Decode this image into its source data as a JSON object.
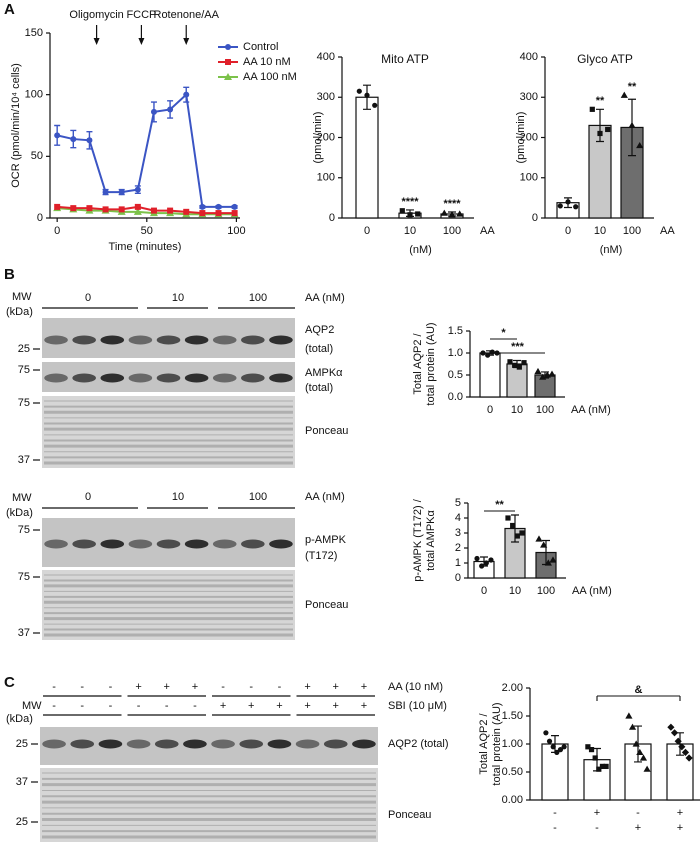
{
  "panel_labels": [
    "A",
    "B",
    "C"
  ],
  "chart_data": [
    {
      "type": "line",
      "xlabel": "Time (minutes)",
      "ylabel": "OCR (pmol/min/10⁴ cells)",
      "x": [
        0,
        9,
        18,
        27,
        36,
        45,
        54,
        63,
        72,
        81,
        90,
        99
      ],
      "series": [
        {
          "name": "Control",
          "color": "#3b55c4",
          "marker": "circle",
          "values": [
            67,
            64,
            63,
            21,
            21,
            23,
            86,
            88,
            100,
            9,
            9,
            9
          ],
          "errors": [
            8,
            7,
            7,
            2,
            2,
            3,
            8,
            7,
            6,
            1,
            1,
            1
          ]
        },
        {
          "name": "AA 10 nM",
          "color": "#e0202a",
          "marker": "square",
          "values": [
            9,
            8,
            8,
            7,
            7,
            9,
            6,
            6,
            5,
            4,
            4,
            4
          ]
        },
        {
          "name": "AA 100 nM",
          "color": "#7cc24a",
          "marker": "triangle",
          "values": [
            8,
            7,
            6,
            6,
            5,
            5,
            4,
            4,
            3,
            3,
            3,
            3
          ]
        }
      ],
      "annotations": [
        {
          "text": "Oligomycin",
          "x": 22
        },
        {
          "text": "FCCP",
          "x": 47
        },
        {
          "text": "Rotenone/AA",
          "x": 72
        }
      ],
      "xlim": [
        -4,
        102
      ],
      "xticks": [
        0,
        50,
        100
      ],
      "ylim": [
        0,
        150
      ],
      "yticks": [
        0,
        50,
        100,
        150
      ],
      "legend": "upper right"
    },
    {
      "type": "bar",
      "title": "Mito ATP",
      "ylabel": [
        "(pmol/min)"
      ],
      "xlabel": "(nM)",
      "x_unit": "AA",
      "categories": [
        "0",
        "10",
        "100"
      ],
      "values": [
        300,
        12,
        10
      ],
      "errors": [
        30,
        8,
        5
      ],
      "points": [
        [
          315,
          305,
          280
        ],
        [
          18,
          8,
          10
        ],
        [
          12,
          8,
          10
        ]
      ],
      "stars": [
        null,
        "****",
        "****"
      ],
      "colors": [
        "#ffffff",
        "#ffffff",
        "#ffffff"
      ],
      "ylim": [
        0,
        400
      ],
      "yticks": [
        0,
        100,
        200,
        300,
        400
      ]
    },
    {
      "type": "bar",
      "title": "Glyco ATP",
      "ylabel": [
        "(pmol/min)"
      ],
      "xlabel": "(nM)",
      "x_unit": "AA",
      "categories": [
        "0",
        "10",
        "100"
      ],
      "values": [
        38,
        230,
        225
      ],
      "errors": [
        12,
        40,
        70
      ],
      "points": [
        [
          30,
          40,
          28
        ],
        [
          270,
          210,
          220
        ],
        [
          305,
          230,
          180
        ]
      ],
      "stars": [
        null,
        "**",
        "**"
      ],
      "colors": [
        "#ffffff",
        "#c8c8c8",
        "#6e6e6e"
      ],
      "ylim": [
        0,
        400
      ],
      "yticks": [
        0,
        100,
        200,
        300,
        400
      ]
    },
    {
      "type": "bar",
      "ylabel": [
        "Total AQP2 /",
        "total protein (AU)"
      ],
      "x_unit": "AA (nM)",
      "categories": [
        "0",
        "10",
        "100"
      ],
      "values": [
        1.0,
        0.75,
        0.5
      ],
      "errors": [
        0.05,
        0.08,
        0.07
      ],
      "points": [
        [
          1.0,
          0.95,
          1.02,
          1.0
        ],
        [
          0.8,
          0.72,
          0.68,
          0.78
        ],
        [
          0.58,
          0.45,
          0.5,
          0.52
        ]
      ],
      "brackets": [
        {
          "between": [
            "0",
            "10"
          ],
          "label": "*"
        },
        {
          "between": [
            "0",
            "100"
          ],
          "label": "***"
        }
      ],
      "colors": [
        "#ffffff",
        "#c8c8c8",
        "#6e6e6e"
      ],
      "ylim": [
        0,
        1.5
      ],
      "yticks": [
        {
          "value": 0,
          "label": "0.0"
        },
        0.5,
        {
          "value": 1,
          "label": "1.0"
        },
        1.5
      ]
    },
    {
      "type": "bar",
      "ylabel": [
        "p-AMPK (T172) /",
        "total AMPKα"
      ],
      "x_unit": "AA (nM)",
      "categories": [
        "0",
        "10",
        "100"
      ],
      "values": [
        1.1,
        3.3,
        1.7
      ],
      "errors": [
        0.3,
        0.9,
        0.8
      ],
      "points": [
        [
          1.3,
          0.8,
          1.0,
          1.2
        ],
        [
          4.0,
          3.5,
          2.8,
          3.0
        ],
        [
          2.6,
          2.2,
          1.0,
          1.2
        ]
      ],
      "brackets": [
        {
          "between": [
            "0",
            "10"
          ],
          "label": "**"
        }
      ],
      "colors": [
        "#ffffff",
        "#c8c8c8",
        "#6e6e6e"
      ],
      "ylim": [
        0,
        5
      ],
      "yticks": [
        0,
        1,
        2,
        3,
        4,
        5
      ]
    },
    {
      "type": "bar",
      "ylabel": [
        "Total AQP2 /",
        "total protein (AU)"
      ],
      "rows": [
        {
          "name": "AA",
          "signs": [
            "-",
            "+",
            "-",
            "+"
          ]
        },
        {
          "name": "SBI",
          "signs": [
            "-",
            "-",
            "+",
            "+"
          ]
        }
      ],
      "categories": [
        null,
        null,
        null,
        null
      ],
      "values": [
        1.0,
        0.72,
        1.0,
        1.0
      ],
      "errors": [
        0.15,
        0.2,
        0.32,
        0.2
      ],
      "points": [
        [
          1.2,
          1.05,
          0.95,
          0.85,
          0.9,
          0.95
        ],
        [
          0.95,
          0.9,
          0.75,
          0.55,
          0.6,
          0.6
        ],
        [
          1.5,
          1.3,
          1.0,
          0.85,
          0.75,
          0.55
        ],
        [
          1.3,
          1.2,
          1.05,
          0.95,
          0.85,
          0.75
        ]
      ],
      "brackets": [
        {
          "between_index": [
            1,
            3
          ],
          "label": "&"
        }
      ],
      "colors": [
        "#ffffff",
        "#ffffff",
        "#ffffff",
        "#ffffff"
      ],
      "ylim": [
        0,
        2
      ],
      "yticks": [
        {
          "value": 0,
          "label": "0.00"
        },
        {
          "value": 0.5,
          "label": "0.50"
        },
        {
          "value": 1,
          "label": "1.00"
        },
        {
          "value": 1.5,
          "label": "1.50"
        },
        {
          "value": 2,
          "label": "2.00"
        }
      ]
    }
  ],
  "blots": [
    {
      "mw_label": [
        "MW",
        "(kDa)"
      ],
      "groups": [
        "0",
        "10",
        "100"
      ],
      "treatment": "AA (nM)",
      "strips": [
        {
          "label": [
            "AQP2",
            "(total)"
          ],
          "markers": [
            "25"
          ]
        },
        {
          "label": [
            "AMPKα",
            "(total)"
          ],
          "markers": [
            "75"
          ]
        },
        {
          "label": [
            "Ponceau"
          ],
          "markers": [
            "75",
            "37"
          ]
        }
      ]
    },
    {
      "mw_label": [
        "MW",
        "(kDa)"
      ],
      "groups": [
        "0",
        "10",
        "100"
      ],
      "treatment": "AA (nM)",
      "strips": [
        {
          "label": [
            "p-AMPK",
            "(T172)"
          ],
          "markers": [
            "75"
          ]
        },
        {
          "label": [
            "Ponceau"
          ],
          "markers": [
            "75",
            "37"
          ]
        }
      ]
    },
    {
      "mw_label": [
        "MW",
        "(kDa)"
      ],
      "rows": [
        {
          "label": "AA (10 nM)",
          "signs": [
            "-",
            "-",
            "-",
            "+",
            "+",
            "+",
            "-",
            "-",
            "-",
            "+",
            "+",
            "+"
          ]
        },
        {
          "label": "SBI (10 μM)",
          "signs": [
            "-",
            "-",
            "-",
            "-",
            "-",
            "-",
            "+",
            "+",
            "+",
            "+",
            "+",
            "+"
          ]
        }
      ],
      "strips": [
        {
          "label": [
            "AQP2 (total)"
          ],
          "markers": [
            "25"
          ]
        },
        {
          "label": [
            "Ponceau"
          ],
          "markers": [
            "37",
            "25"
          ]
        }
      ]
    }
  ]
}
